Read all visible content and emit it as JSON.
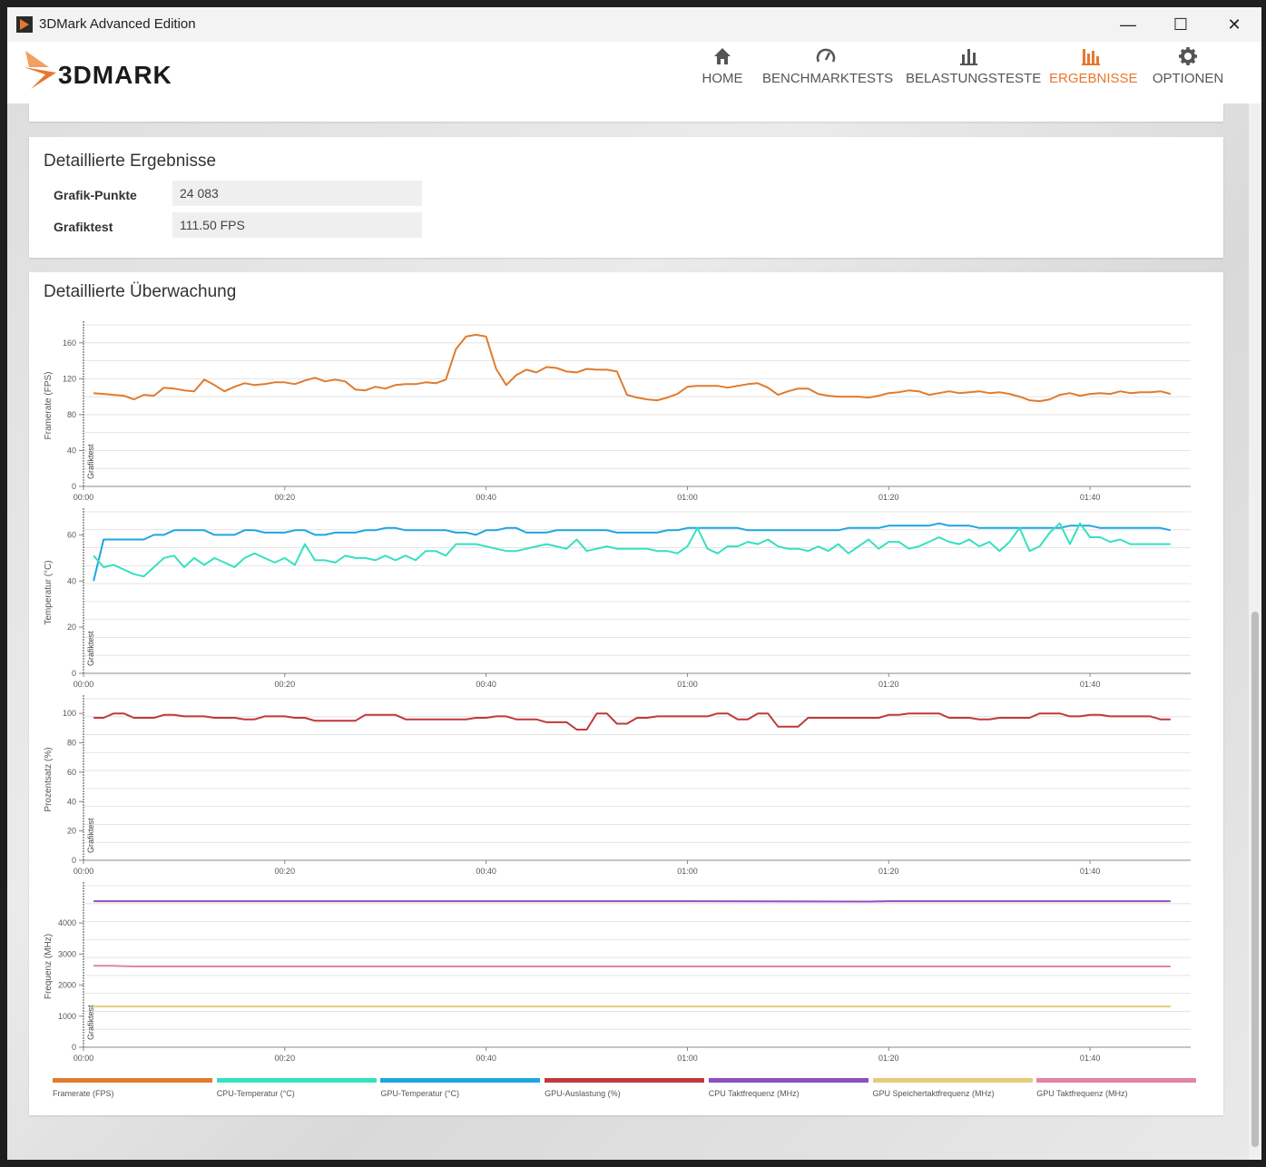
{
  "window": {
    "title": "3DMark Advanced Edition"
  },
  "window_controls": [
    "—",
    "☐",
    "✕"
  ],
  "brand": {
    "logo_text": "3DMARK",
    "accent": "#e8772e"
  },
  "nav": [
    {
      "label": "HOME",
      "icon": "home-icon"
    },
    {
      "label": "BENCHMARKTESTS",
      "icon": "speedometer-icon"
    },
    {
      "label": "BELASTUNGSTESTE",
      "icon": "bar-chart-icon"
    },
    {
      "label": "ERGEBNISSE",
      "icon": "results-icon",
      "active": true
    },
    {
      "label": "OPTIONEN",
      "icon": "gear-icon"
    }
  ],
  "detailed_results": {
    "title": "Detaillierte Ergebnisse",
    "rows": [
      {
        "label": "Grafik-Punkte",
        "value": "24 083"
      },
      {
        "label": "Grafiktest",
        "value": "111.50 FPS"
      }
    ]
  },
  "monitoring": {
    "title": "Detaillierte Überwachung",
    "phase_label": "Grafiktest",
    "colors": {
      "fps": "#e07b2e",
      "cpu_temp": "#36e0c0",
      "gpu_temp": "#1da6e0",
      "gpu_load": "#c0393a",
      "cpu_clock": "#8e4fc0",
      "gpu_mem_clock": "#e6cc7a",
      "gpu_clock": "#e084a8"
    },
    "legend": [
      {
        "label": "Framerate (FPS)",
        "color": "#e07b2e"
      },
      {
        "label": "CPU-Temperatur (°C)",
        "color": "#36e0c0"
      },
      {
        "label": "GPU-Temperatur (°C)",
        "color": "#1da6e0"
      },
      {
        "label": "GPU-Auslastung (%)",
        "color": "#c0393a"
      },
      {
        "label": "CPU Taktfrequenz (MHz)",
        "color": "#8e4fc0"
      },
      {
        "label": "GPU Speichertaktfrequenz (MHz)",
        "color": "#e6cc7a"
      },
      {
        "label": "GPU Taktfrequenz (MHz)",
        "color": "#e084a8"
      }
    ]
  },
  "chart_data": [
    {
      "type": "line",
      "ylabel": "Framerate (FPS)",
      "ylim": [
        0,
        180
      ],
      "yticks": [
        0,
        40,
        80,
        120,
        160
      ],
      "xlim": [
        0,
        110
      ],
      "xticks": [
        "00:00",
        "00:20",
        "00:40",
        "01:00",
        "01:20",
        "01:40"
      ],
      "grid": true,
      "series": [
        {
          "name": "Framerate (FPS)",
          "x": [
            1,
            2,
            3,
            4,
            5,
            6,
            7,
            8,
            9,
            10,
            11,
            12,
            13,
            14,
            15,
            16,
            17,
            18,
            19,
            20,
            21,
            22,
            23,
            24,
            25,
            26,
            27,
            28,
            29,
            30,
            31,
            32,
            33,
            34,
            35,
            36,
            37,
            38,
            39,
            40,
            41,
            42,
            43,
            44,
            45,
            46,
            47,
            48,
            49,
            50,
            51,
            52,
            53,
            54,
            55,
            56,
            57,
            58,
            59,
            60,
            61,
            62,
            63,
            64,
            65,
            66,
            67,
            68,
            69,
            70,
            71,
            72,
            73,
            74,
            75,
            76,
            77,
            78,
            79,
            80,
            81,
            82,
            83,
            84,
            85,
            86,
            87,
            88,
            89,
            90,
            91,
            92,
            93,
            94,
            95,
            96,
            97,
            98,
            99,
            100,
            101,
            102,
            103,
            104,
            105,
            106,
            107,
            108
          ],
          "y": [
            104,
            103,
            102,
            101,
            97,
            102,
            101,
            110,
            109,
            107,
            106,
            119,
            113,
            106,
            111,
            115,
            113,
            114,
            116,
            116,
            114,
            118,
            121,
            117,
            119,
            117,
            108,
            107,
            111,
            109,
            113,
            114,
            114,
            116,
            115,
            119,
            153,
            167,
            169,
            167,
            131,
            113,
            124,
            130,
            127,
            133,
            132,
            128,
            127,
            131,
            130,
            130,
            128,
            102,
            99,
            97,
            96,
            99,
            103,
            111,
            112,
            112,
            112,
            110,
            112,
            114,
            115,
            110,
            102,
            106,
            109,
            109,
            103,
            101,
            100,
            100,
            100,
            99,
            101,
            104,
            105,
            107,
            106,
            102,
            104,
            106,
            104,
            105,
            106,
            104,
            105,
            103,
            100,
            96,
            95,
            97,
            102,
            104,
            101,
            103,
            104,
            103,
            106,
            104,
            105,
            105,
            106,
            103
          ]
        }
      ]
    },
    {
      "type": "line",
      "ylabel": "Temperatur (°C)",
      "ylim": [
        0,
        70
      ],
      "yticks": [
        0,
        20,
        40,
        60
      ],
      "xlim": [
        0,
        110
      ],
      "xticks": [
        "00:00",
        "00:20",
        "00:40",
        "01:00",
        "01:20",
        "01:40"
      ],
      "grid": true,
      "series": [
        {
          "name": "GPU-Temperatur (°C)",
          "x": [
            1,
            2,
            3,
            4,
            5,
            6,
            7,
            8,
            9,
            10,
            11,
            12,
            13,
            14,
            15,
            16,
            17,
            18,
            19,
            20,
            21,
            22,
            23,
            24,
            25,
            26,
            27,
            28,
            29,
            30,
            31,
            32,
            33,
            34,
            35,
            36,
            37,
            38,
            39,
            40,
            41,
            42,
            43,
            44,
            45,
            46,
            47,
            48,
            49,
            50,
            51,
            52,
            53,
            54,
            55,
            56,
            57,
            58,
            59,
            60,
            61,
            62,
            63,
            64,
            65,
            66,
            67,
            68,
            69,
            70,
            71,
            72,
            73,
            74,
            75,
            76,
            77,
            78,
            79,
            80,
            81,
            82,
            83,
            84,
            85,
            86,
            87,
            88,
            89,
            90,
            91,
            92,
            93,
            94,
            95,
            96,
            97,
            98,
            99,
            100,
            101,
            102,
            103,
            104,
            105,
            106,
            107,
            108
          ],
          "y": [
            40,
            58,
            58,
            58,
            58,
            58,
            60,
            60,
            62,
            62,
            62,
            62,
            60,
            60,
            60,
            62,
            62,
            61,
            61,
            61,
            62,
            62,
            60,
            60,
            61,
            61,
            61,
            62,
            62,
            63,
            63,
            62,
            62,
            62,
            62,
            62,
            61,
            61,
            60,
            62,
            62,
            63,
            63,
            61,
            61,
            61,
            62,
            62,
            62,
            62,
            62,
            62,
            61,
            61,
            61,
            61,
            61,
            62,
            62,
            63,
            63,
            63,
            63,
            63,
            63,
            62,
            62,
            62,
            62,
            62,
            62,
            62,
            62,
            62,
            62,
            63,
            63,
            63,
            63,
            64,
            64,
            64,
            64,
            64,
            65,
            64,
            64,
            64,
            63,
            63,
            63,
            63,
            63,
            63,
            63,
            63,
            63,
            64,
            64,
            64,
            63,
            63,
            63,
            63,
            63,
            63,
            63,
            62
          ]
        },
        {
          "name": "CPU-Temperatur (°C)",
          "x": [
            1,
            2,
            3,
            4,
            5,
            6,
            7,
            8,
            9,
            10,
            11,
            12,
            13,
            14,
            15,
            16,
            17,
            18,
            19,
            20,
            21,
            22,
            23,
            24,
            25,
            26,
            27,
            28,
            29,
            30,
            31,
            32,
            33,
            34,
            35,
            36,
            37,
            38,
            39,
            40,
            41,
            42,
            43,
            44,
            45,
            46,
            47,
            48,
            49,
            50,
            51,
            52,
            53,
            54,
            55,
            56,
            57,
            58,
            59,
            60,
            61,
            62,
            63,
            64,
            65,
            66,
            67,
            68,
            69,
            70,
            71,
            72,
            73,
            74,
            75,
            76,
            77,
            78,
            79,
            80,
            81,
            82,
            83,
            84,
            85,
            86,
            87,
            88,
            89,
            90,
            91,
            92,
            93,
            94,
            95,
            96,
            97,
            98,
            99,
            100,
            101,
            102,
            103,
            104,
            105,
            106,
            107,
            108
          ],
          "y": [
            51,
            46,
            47,
            45,
            43,
            42,
            46,
            50,
            51,
            46,
            50,
            47,
            50,
            48,
            46,
            50,
            52,
            50,
            48,
            50,
            47,
            56,
            49,
            49,
            48,
            51,
            50,
            50,
            49,
            51,
            49,
            51,
            49,
            53,
            53,
            51,
            56,
            56,
            56,
            55,
            54,
            53,
            53,
            54,
            55,
            56,
            55,
            54,
            58,
            53,
            54,
            55,
            54,
            54,
            54,
            54,
            53,
            53,
            52,
            55,
            63,
            54,
            52,
            55,
            55,
            57,
            56,
            58,
            55,
            54,
            54,
            53,
            55,
            53,
            56,
            52,
            55,
            58,
            54,
            57,
            57,
            54,
            55,
            57,
            59,
            57,
            56,
            58,
            55,
            57,
            53,
            57,
            63,
            53,
            55,
            61,
            65,
            56,
            65,
            59,
            59,
            57,
            58,
            56,
            56,
            56,
            56,
            56
          ]
        }
      ]
    },
    {
      "type": "line",
      "ylabel": "Prozentsatz (%)",
      "ylim": [
        0,
        110
      ],
      "yticks": [
        0,
        20,
        40,
        60,
        80,
        100
      ],
      "xlim": [
        0,
        110
      ],
      "xticks": [
        "00:00",
        "00:20",
        "00:40",
        "01:00",
        "01:20",
        "01:40"
      ],
      "grid": true,
      "series": [
        {
          "name": "GPU-Auslastung (%)",
          "x": [
            1,
            2,
            3,
            4,
            5,
            6,
            7,
            8,
            9,
            10,
            11,
            12,
            13,
            14,
            15,
            16,
            17,
            18,
            19,
            20,
            21,
            22,
            23,
            24,
            25,
            26,
            27,
            28,
            29,
            30,
            31,
            32,
            33,
            34,
            35,
            36,
            37,
            38,
            39,
            40,
            41,
            42,
            43,
            44,
            45,
            46,
            47,
            48,
            49,
            50,
            51,
            52,
            53,
            54,
            55,
            56,
            57,
            58,
            59,
            60,
            61,
            62,
            63,
            64,
            65,
            66,
            67,
            68,
            69,
            70,
            71,
            72,
            73,
            74,
            75,
            76,
            77,
            78,
            79,
            80,
            81,
            82,
            83,
            84,
            85,
            86,
            87,
            88,
            89,
            90,
            91,
            92,
            93,
            94,
            95,
            96,
            97,
            98,
            99,
            100,
            101,
            102,
            103,
            104,
            105,
            106,
            107,
            108
          ],
          "y": [
            97,
            97,
            100,
            100,
            97,
            97,
            97,
            99,
            99,
            98,
            98,
            98,
            97,
            97,
            97,
            96,
            96,
            98,
            98,
            98,
            97,
            97,
            95,
            95,
            95,
            95,
            95,
            99,
            99,
            99,
            99,
            96,
            96,
            96,
            96,
            96,
            96,
            96,
            97,
            97,
            98,
            98,
            96,
            96,
            96,
            94,
            94,
            94,
            89,
            89,
            100,
            100,
            93,
            93,
            97,
            97,
            98,
            98,
            98,
            98,
            98,
            98,
            100,
            100,
            96,
            96,
            100,
            100,
            91,
            91,
            91,
            97,
            97,
            97,
            97,
            97,
            97,
            97,
            97,
            99,
            99,
            100,
            100,
            100,
            100,
            97,
            97,
            97,
            96,
            96,
            97,
            97,
            97,
            97,
            100,
            100,
            100,
            98,
            98,
            99,
            99,
            98,
            98,
            98,
            98,
            98,
            96,
            96
          ]
        }
      ]
    },
    {
      "type": "line",
      "ylabel": "Frequenz (MHz)",
      "ylim": [
        0,
        5200
      ],
      "yticks": [
        0,
        1000,
        2000,
        3000,
        4000
      ],
      "xlim": [
        0,
        110
      ],
      "xticks": [
        "00:00",
        "00:20",
        "00:40",
        "01:00",
        "01:20",
        "01:40"
      ],
      "grid": true,
      "series": [
        {
          "name": "CPU Taktfrequenz (MHz)",
          "x": [
            1,
            20,
            40,
            60,
            78,
            80,
            100,
            108
          ],
          "y": [
            4700,
            4700,
            4700,
            4700,
            4690,
            4700,
            4700,
            4700
          ]
        },
        {
          "name": "GPU Taktfrequenz (MHz)",
          "x": [
            1,
            3,
            5,
            20,
            40,
            60,
            80,
            100,
            108
          ],
          "y": [
            2620,
            2620,
            2600,
            2600,
            2600,
            2600,
            2600,
            2600,
            2600
          ]
        },
        {
          "name": "GPU Speichertaktfrequenz (MHz)",
          "x": [
            1,
            108
          ],
          "y": [
            1312,
            1312
          ]
        }
      ]
    }
  ]
}
